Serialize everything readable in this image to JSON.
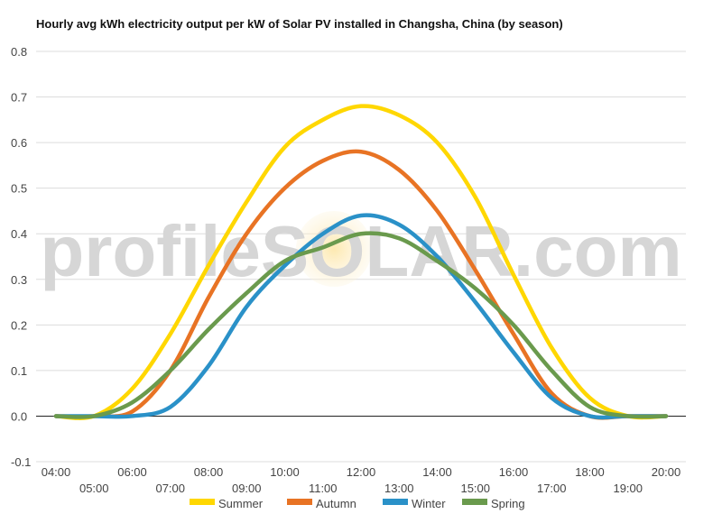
{
  "chart_data": {
    "type": "line",
    "title": "Hourly avg kWh electricity output per kW of Solar PV installed in Changsha, China (by season)",
    "xlabel": "",
    "ylabel": "",
    "ylim": [
      -0.1,
      0.8
    ],
    "yticks": [
      "-0.1",
      "0.0",
      "0.1",
      "0.2",
      "0.3",
      "0.4",
      "0.5",
      "0.6",
      "0.7",
      "0.8"
    ],
    "xticks": [
      "04:00",
      "05:00",
      "06:00",
      "07:00",
      "08:00",
      "09:00",
      "10:00",
      "11:00",
      "12:00",
      "13:00",
      "14:00",
      "15:00",
      "16:00",
      "17:00",
      "18:00",
      "19:00",
      "20:00"
    ],
    "x": [
      4,
      5,
      6,
      7,
      8,
      9,
      10,
      11,
      12,
      13,
      14,
      15,
      16,
      17,
      18,
      19,
      20
    ],
    "grid": true,
    "legend_position": "bottom",
    "series": [
      {
        "name": "Summer",
        "color": "#ffd700",
        "values": [
          0.0,
          0.0,
          0.06,
          0.18,
          0.33,
          0.47,
          0.59,
          0.65,
          0.68,
          0.66,
          0.6,
          0.48,
          0.31,
          0.15,
          0.04,
          0.0,
          0.0
        ]
      },
      {
        "name": "Autumn",
        "color": "#e87324",
        "values": [
          0.0,
          0.0,
          0.01,
          0.1,
          0.26,
          0.4,
          0.5,
          0.56,
          0.58,
          0.54,
          0.45,
          0.32,
          0.18,
          0.05,
          0.0,
          0.0,
          0.0
        ]
      },
      {
        "name": "Winter",
        "color": "#2a91c8",
        "values": [
          0.0,
          0.0,
          0.0,
          0.02,
          0.11,
          0.24,
          0.33,
          0.4,
          0.44,
          0.42,
          0.35,
          0.25,
          0.14,
          0.04,
          0.0,
          0.0,
          0.0
        ]
      },
      {
        "name": "Spring",
        "color": "#6a9a4d",
        "values": [
          0.0,
          0.0,
          0.03,
          0.1,
          0.19,
          0.27,
          0.34,
          0.37,
          0.4,
          0.39,
          0.34,
          0.28,
          0.2,
          0.1,
          0.02,
          0.0,
          0.0
        ]
      }
    ],
    "watermark": "profileSOLAR.com"
  }
}
